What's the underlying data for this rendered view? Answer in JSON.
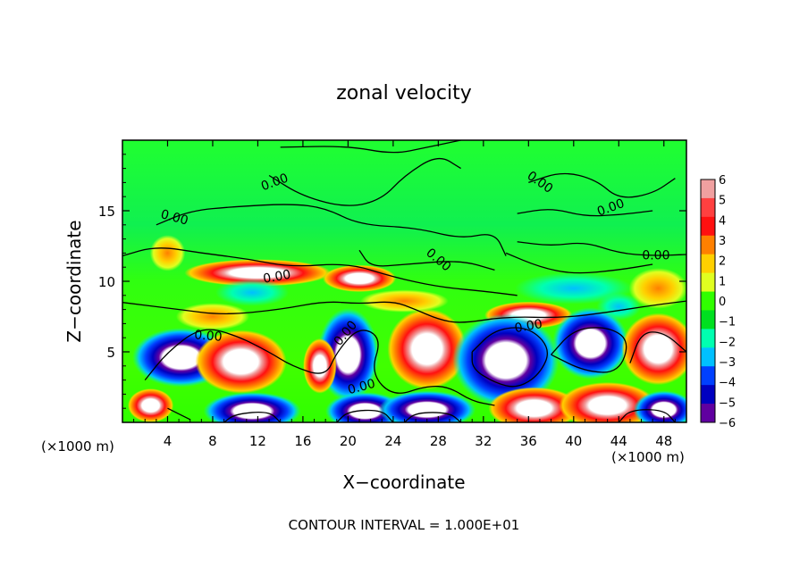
{
  "chart_data": {
    "type": "heatmap",
    "title": "zonal velocity",
    "xlabel": "X−coordinate",
    "ylabel": "Z−coordinate",
    "x_ticks": [
      4,
      8,
      12,
      16,
      20,
      24,
      28,
      32,
      36,
      40,
      44,
      48
    ],
    "y_ticks": [
      5,
      10,
      15
    ],
    "x_unit": "(×1000 m)",
    "z_unit": "(×1000 m)",
    "xlim": [
      0,
      50
    ],
    "ylim": [
      0,
      20
    ],
    "colorbar_ticks": [
      6,
      5,
      4,
      3,
      2,
      1,
      0,
      -1,
      -2,
      -3,
      -4,
      -5,
      -6
    ],
    "colorbar_colors": [
      "#f0a0a0",
      "#ff4040",
      "#ff1010",
      "#ff8000",
      "#ffd000",
      "#e0ff20",
      "#30ff00",
      "#00e020",
      "#00ffb0",
      "#00c0ff",
      "#0040ff",
      "#0000c0",
      "#6000a0"
    ],
    "contour_label": "0.00",
    "footnote": "CONTOUR INTERVAL =  1.000E+01",
    "field_blobs": [
      {
        "x": 5.2,
        "y": 4.6,
        "rx": 3.2,
        "ry": 1.4,
        "sign": "neg"
      },
      {
        "x": 10.5,
        "y": 4.3,
        "rx": 3.0,
        "ry": 1.5,
        "sign": "pos"
      },
      {
        "x": 20.0,
        "y": 4.8,
        "rx": 2.0,
        "ry": 2.2,
        "sign": "neg"
      },
      {
        "x": 27.0,
        "y": 5.2,
        "rx": 2.6,
        "ry": 1.9,
        "sign": "pos"
      },
      {
        "x": 34.0,
        "y": 4.4,
        "rx": 3.5,
        "ry": 2.2,
        "sign": "neg"
      },
      {
        "x": 41.5,
        "y": 5.6,
        "rx": 2.5,
        "ry": 1.7,
        "sign": "neg"
      },
      {
        "x": 47.5,
        "y": 5.2,
        "rx": 2.4,
        "ry": 1.7,
        "sign": "pos"
      },
      {
        "x": 11.5,
        "y": 0.8,
        "rx": 3.2,
        "ry": 0.9,
        "sign": "neg"
      },
      {
        "x": 21.5,
        "y": 0.8,
        "rx": 2.6,
        "ry": 0.9,
        "sign": "neg"
      },
      {
        "x": 27.0,
        "y": 0.9,
        "rx": 3.2,
        "ry": 0.9,
        "sign": "neg"
      },
      {
        "x": 36.5,
        "y": 1.0,
        "rx": 3.0,
        "ry": 1.0,
        "sign": "pos"
      },
      {
        "x": 43.0,
        "y": 1.2,
        "rx": 3.2,
        "ry": 1.1,
        "sign": "pos"
      },
      {
        "x": 48.0,
        "y": 0.9,
        "rx": 2.0,
        "ry": 0.9,
        "sign": "neg"
      },
      {
        "x": 17.5,
        "y": 4.0,
        "rx": 1.1,
        "ry": 1.3,
        "sign": "pos"
      },
      {
        "x": 2.5,
        "y": 1.2,
        "rx": 1.5,
        "ry": 0.8,
        "sign": "pos"
      }
    ],
    "band_blobs": [
      {
        "x": 12.0,
        "y": 10.6,
        "rx": 5.0,
        "ry": 0.6,
        "sign": "pos"
      },
      {
        "x": 21.0,
        "y": 10.2,
        "rx": 2.5,
        "ry": 0.6,
        "sign": "pos"
      },
      {
        "x": 11.5,
        "y": 9.2,
        "rx": 2.5,
        "ry": 0.6,
        "sign": "negw"
      },
      {
        "x": 25.0,
        "y": 8.6,
        "rx": 3.0,
        "ry": 0.5,
        "sign": "posw"
      },
      {
        "x": 40.0,
        "y": 9.5,
        "rx": 4.0,
        "ry": 0.7,
        "sign": "negw"
      },
      {
        "x": 4.0,
        "y": 12.0,
        "rx": 1.2,
        "ry": 0.8,
        "sign": "posw"
      },
      {
        "x": 8.0,
        "y": 7.5,
        "rx": 2.5,
        "ry": 0.6,
        "sign": "posw"
      },
      {
        "x": 36.0,
        "y": 7.6,
        "rx": 3.0,
        "ry": 0.6,
        "sign": "pos"
      },
      {
        "x": 47.5,
        "y": 9.5,
        "rx": 2.0,
        "ry": 0.9,
        "sign": "posw"
      },
      {
        "x": 44.0,
        "y": 8.2,
        "rx": 1.5,
        "ry": 0.6,
        "sign": "negw"
      }
    ],
    "contours": [
      [
        [
          14,
          19.5
        ],
        [
          20,
          19.6
        ],
        [
          24,
          19.0
        ],
        [
          27,
          19.5
        ],
        [
          30,
          20.0
        ]
      ],
      [
        [
          13,
          17.5
        ],
        [
          16,
          16.0
        ],
        [
          20,
          15.2
        ],
        [
          23,
          15.8
        ],
        [
          25,
          17.5
        ],
        [
          28,
          19.0
        ],
        [
          30,
          18.0
        ]
      ],
      [
        [
          3,
          14.0
        ],
        [
          6,
          15.0
        ],
        [
          10,
          15.3
        ],
        [
          15,
          15.5
        ],
        [
          18,
          15.2
        ],
        [
          21,
          14.0
        ],
        [
          26,
          13.8
        ],
        [
          30,
          13.0
        ],
        [
          33,
          13.5
        ],
        [
          34,
          11.8
        ]
      ],
      [
        [
          21,
          12.2
        ],
        [
          22,
          11.0
        ],
        [
          25,
          11.2
        ],
        [
          30,
          11.5
        ],
        [
          33,
          10.8
        ]
      ],
      [
        [
          0,
          11.8
        ],
        [
          3,
          12.5
        ],
        [
          7,
          12.0
        ],
        [
          11,
          11.6
        ],
        [
          15,
          11.0
        ],
        [
          20,
          11.3
        ],
        [
          24,
          10.3
        ],
        [
          28,
          9.6
        ],
        [
          32,
          9.3
        ],
        [
          35,
          9.0
        ]
      ],
      [
        [
          0,
          8.5
        ],
        [
          5,
          8.0
        ],
        [
          9,
          7.6
        ],
        [
          14,
          8.0
        ],
        [
          18,
          8.6
        ],
        [
          21,
          8.4
        ],
        [
          24,
          8.6
        ],
        [
          26,
          8.0
        ],
        [
          28,
          7.3
        ],
        [
          30,
          7.0
        ],
        [
          34,
          7.5
        ],
        [
          39,
          7.4
        ],
        [
          43,
          7.8
        ],
        [
          47,
          8.3
        ],
        [
          50,
          8.6
        ]
      ],
      [
        [
          36,
          17.0
        ],
        [
          39,
          17.8
        ],
        [
          42,
          17.2
        ],
        [
          44,
          15.8
        ],
        [
          47,
          16.2
        ],
        [
          49,
          17.3
        ]
      ],
      [
        [
          35,
          14.8
        ],
        [
          38,
          15.2
        ],
        [
          41,
          14.6
        ],
        [
          44,
          14.7
        ],
        [
          47,
          15.0
        ]
      ],
      [
        [
          35,
          12.8
        ],
        [
          38,
          12.5
        ],
        [
          41,
          12.8
        ],
        [
          44,
          12.0
        ],
        [
          47,
          11.8
        ],
        [
          50,
          11.9
        ]
      ],
      [
        [
          34,
          12.0
        ],
        [
          37,
          11.0
        ],
        [
          40,
          10.5
        ],
        [
          44,
          10.8
        ],
        [
          47,
          11.2
        ]
      ],
      [
        [
          2,
          3.0
        ],
        [
          4,
          5.0
        ],
        [
          7,
          6.8
        ],
        [
          10,
          6.2
        ],
        [
          13,
          5.0
        ],
        [
          15,
          4.0
        ],
        [
          18,
          3.2
        ],
        [
          19,
          5.0
        ],
        [
          21,
          6.8
        ],
        [
          23,
          6.0
        ],
        [
          22,
          3.5
        ],
        [
          24,
          1.8
        ],
        [
          27,
          2.6
        ],
        [
          29,
          2.5
        ],
        [
          31,
          1.5
        ],
        [
          33,
          1.2
        ]
      ],
      [
        [
          31,
          5.0
        ],
        [
          33,
          6.6
        ],
        [
          36,
          6.8
        ],
        [
          38,
          5.2
        ],
        [
          37,
          3.4
        ],
        [
          35,
          2.4
        ],
        [
          33,
          2.8
        ],
        [
          31,
          3.8
        ],
        [
          31,
          5.0
        ]
      ],
      [
        [
          38,
          4.8
        ],
        [
          40,
          6.6
        ],
        [
          43,
          6.8
        ],
        [
          45,
          5.8
        ],
        [
          44,
          3.5
        ],
        [
          41,
          3.6
        ],
        [
          38,
          4.8
        ]
      ],
      [
        [
          45,
          4.2
        ],
        [
          46,
          6.4
        ],
        [
          48,
          6.4
        ],
        [
          50,
          5.0
        ]
      ],
      [
        [
          4,
          1.0
        ],
        [
          6,
          0.2
        ]
      ],
      [
        [
          9,
          0.0
        ],
        [
          10,
          0.6
        ],
        [
          13,
          0.8
        ],
        [
          14,
          0.0
        ]
      ],
      [
        [
          19,
          0.0
        ],
        [
          20,
          0.8
        ],
        [
          23,
          0.9
        ],
        [
          24,
          0.0
        ]
      ],
      [
        [
          25,
          0.0
        ],
        [
          26,
          0.7
        ],
        [
          29,
          0.7
        ],
        [
          30,
          0.0
        ]
      ],
      [
        [
          44,
          0.0
        ],
        [
          45,
          0.9
        ],
        [
          48,
          0.9
        ],
        [
          49,
          0.0
        ]
      ]
    ],
    "contour_labels": [
      {
        "x": 13.5,
        "y": 17.0,
        "r": -20
      },
      {
        "x": 4.6,
        "y": 14.5,
        "r": 15
      },
      {
        "x": 13.7,
        "y": 10.3,
        "r": -10
      },
      {
        "x": 7.6,
        "y": 6.1,
        "r": 5
      },
      {
        "x": 19.8,
        "y": 6.3,
        "r": -50
      },
      {
        "x": 21.2,
        "y": 2.5,
        "r": -15
      },
      {
        "x": 28.0,
        "y": 11.5,
        "r": 40
      },
      {
        "x": 36.0,
        "y": 6.8,
        "r": -10
      },
      {
        "x": 37.0,
        "y": 17.0,
        "r": 35
      },
      {
        "x": 43.3,
        "y": 15.2,
        "r": -20
      },
      {
        "x": 47.3,
        "y": 11.8,
        "r": 0
      }
    ]
  }
}
